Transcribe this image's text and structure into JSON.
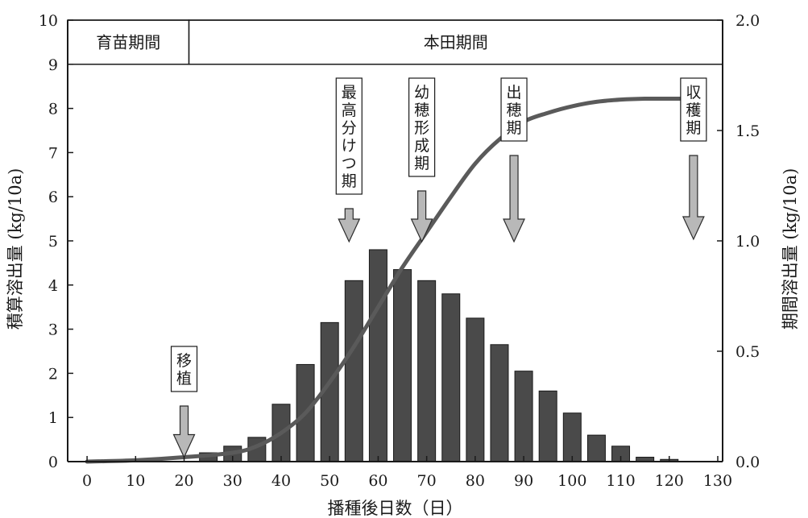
{
  "chart_data": {
    "type": "bar",
    "x": [
      25,
      30,
      35,
      40,
      45,
      50,
      55,
      60,
      65,
      70,
      75,
      80,
      85,
      90,
      95,
      100,
      105,
      110,
      115,
      120
    ],
    "series": [
      {
        "axis": "right",
        "style": "bar",
        "color": "#4a4a4a",
        "values": [
          0.04,
          0.07,
          0.11,
          0.26,
          0.44,
          0.63,
          0.82,
          0.96,
          0.87,
          0.82,
          0.76,
          0.65,
          0.53,
          0.41,
          0.32,
          0.22,
          0.12,
          0.07,
          0.02,
          0.01
        ]
      },
      {
        "axis": "left",
        "style": "line",
        "color": "#5a5a5a",
        "x": [
          0,
          10,
          20,
          30,
          35,
          40,
          45,
          50,
          55,
          60,
          65,
          70,
          75,
          80,
          85,
          90,
          95,
          100,
          105,
          110,
          115,
          120,
          125
        ],
        "values": [
          0,
          0.03,
          0.1,
          0.2,
          0.35,
          0.65,
          1.1,
          1.8,
          2.6,
          3.5,
          4.4,
          5.2,
          6.0,
          6.75,
          7.3,
          7.7,
          7.9,
          8.05,
          8.15,
          8.2,
          8.22,
          8.22,
          8.22
        ]
      }
    ],
    "xlabel": "播種後日数（日）",
    "ylabel_left": "積算溶出量 (kg/10a)",
    "ylabel_right": "期間溶出量 (kg/10a)",
    "xlim": [
      -4,
      131
    ],
    "ylim_left": [
      0,
      10
    ],
    "ylim_right": [
      0,
      2.0
    ],
    "xticks": [
      0,
      10,
      20,
      30,
      40,
      50,
      60,
      70,
      80,
      90,
      100,
      110,
      120,
      130
    ],
    "yticks_left": [
      0,
      1,
      2,
      3,
      4,
      5,
      6,
      7,
      8,
      9,
      10
    ],
    "yticks_right": [
      "0.0",
      "0.5",
      "1.0",
      "1.5",
      "2.0"
    ],
    "periods": [
      {
        "label": "育苗期間",
        "x_start": -4,
        "x_end": 21
      },
      {
        "label": "本田期間",
        "x_start": 21,
        "x_end": 131
      }
    ],
    "annotations": [
      {
        "label": "移植",
        "x": 20
      },
      {
        "label": "最高分けつ期",
        "x": 54
      },
      {
        "label": "幼穂形成期",
        "x": 69
      },
      {
        "label": "出穂期",
        "x": 88
      },
      {
        "label": "収穫期",
        "x": 125
      }
    ],
    "grid": false,
    "legend": "none"
  }
}
